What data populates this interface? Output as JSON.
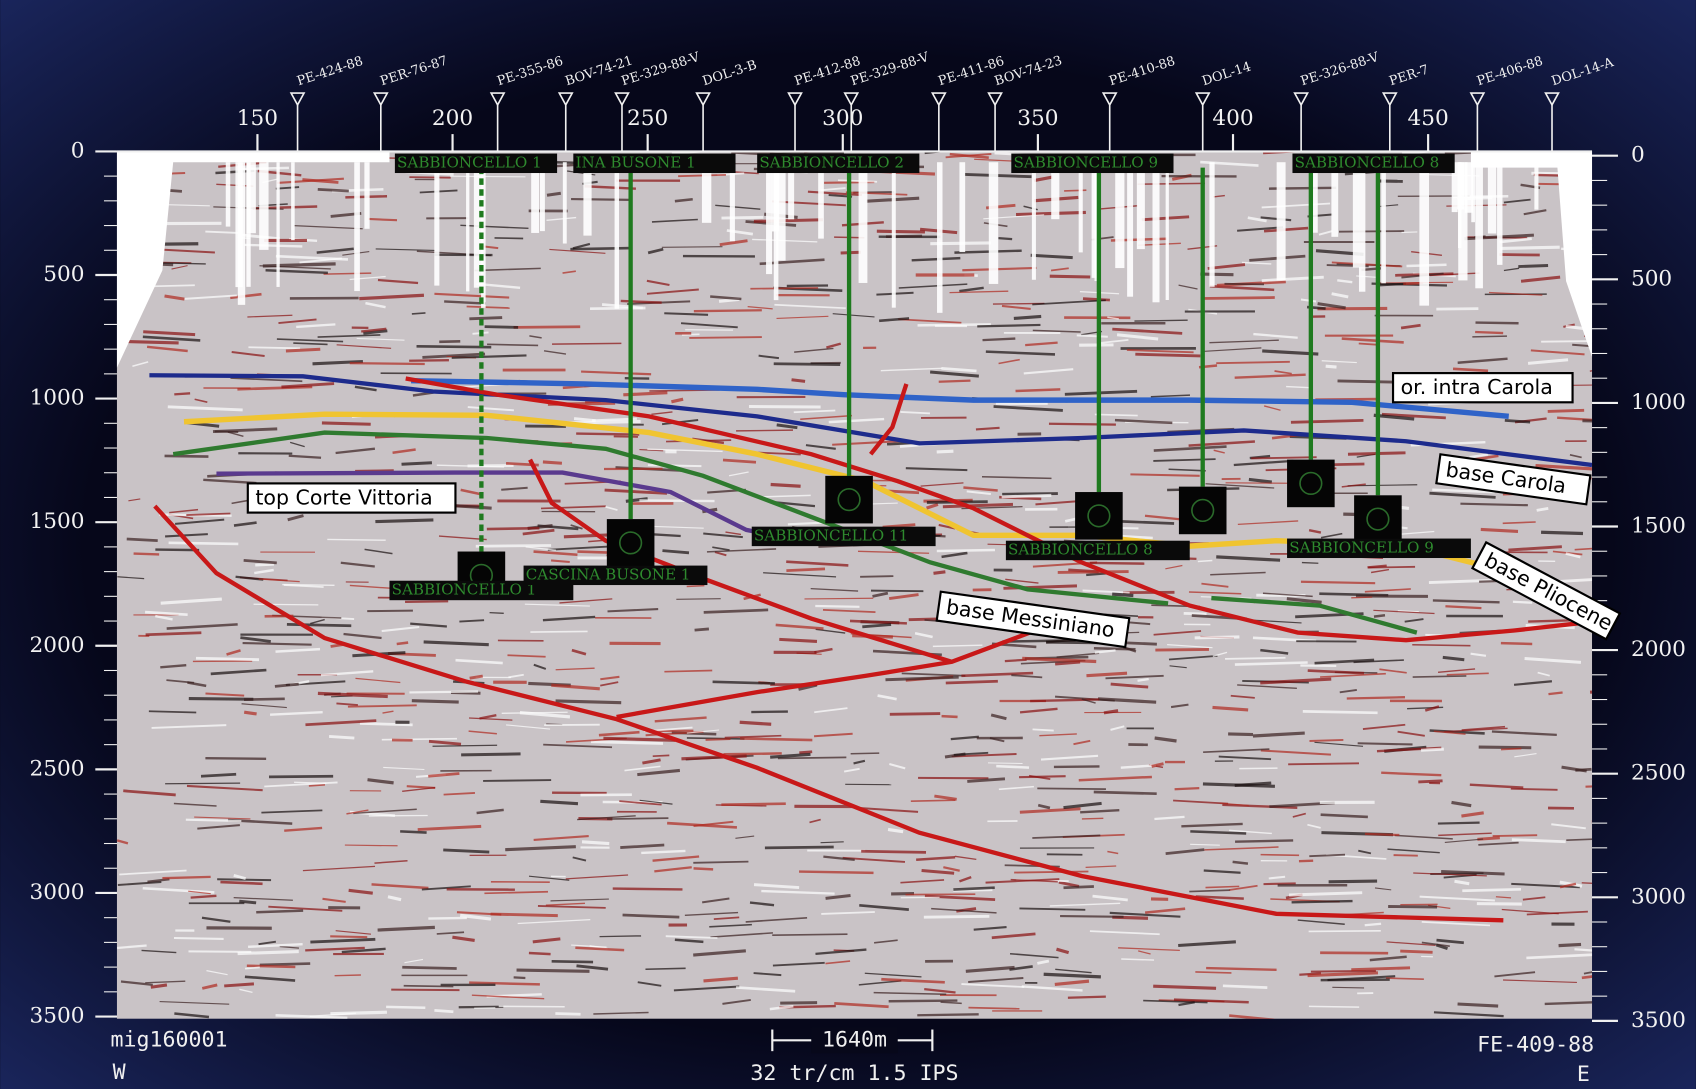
{
  "section": {
    "depth_axis": {
      "ylim": [
        0,
        3500
      ],
      "yticks": [
        0,
        500,
        1000,
        1500,
        2000,
        2500,
        3000,
        3500
      ]
    },
    "cdp_axis": {
      "xlim": [
        114,
        492
      ],
      "xticks": [
        150,
        200,
        250,
        300,
        350,
        400,
        450
      ]
    },
    "surface_wells": [
      "PE-424-88",
      "PER-76-87",
      "PE-355-86",
      "BOV-74-21",
      "PE-329-88-V",
      "DOL-3-B",
      "PE-412-88",
      "PE-329-88-V",
      "PE-411-86",
      "BOV-74-23",
      "PE-410-88",
      "DOL-14",
      "PE-326-88-V",
      "PER-7",
      "PE-406-88",
      "DOL-14-A"
    ],
    "well_names_top": [
      "SABBIONCELLO 1",
      "INA BUSONE 1",
      "SABBIONCELLO 2",
      "SABBIONCELLO 9",
      "SABBIONCELLO 8"
    ],
    "well_names_bottom": [
      "SABBIONCELLO 1",
      "CASCINA BUSONE 1",
      "SABBIONCELLO 11",
      "SABBIONCELLO 8",
      "SABBIONCELLO 9"
    ],
    "horizons": [
      "or. intra Carola",
      "base Carola",
      "base Pliocene",
      "base Messiniano",
      "top Corte Vittoria"
    ],
    "footer": {
      "line_id": "mig160001",
      "west": "W",
      "scale": "1640m",
      "params": "32 tr/cm 1.5 IPS",
      "profile": "FE-409-88",
      "east": "E"
    }
  }
}
